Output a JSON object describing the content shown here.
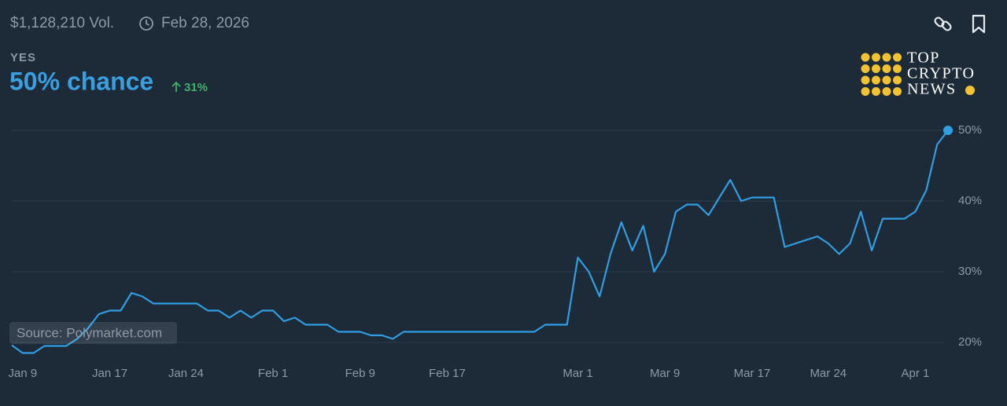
{
  "header": {
    "volume": "$1,128,210 Vol.",
    "end_date": "Feb 28, 2026",
    "outcome": "YES",
    "chance": "50% chance",
    "change": "31%"
  },
  "source": "Source: Polymarket.com",
  "logo": {
    "line1": "TOP",
    "line2": "CRYPTO",
    "line3": "NEWS"
  },
  "chart_data": {
    "type": "line",
    "categories": [
      null,
      "Jan 9",
      null,
      null,
      null,
      null,
      null,
      null,
      null,
      "Jan 17",
      null,
      null,
      null,
      null,
      null,
      null,
      "Jan 24",
      null,
      null,
      null,
      null,
      null,
      null,
      null,
      "Feb 1",
      null,
      null,
      null,
      null,
      null,
      null,
      null,
      "Feb 9",
      null,
      null,
      null,
      null,
      null,
      null,
      null,
      "Feb 17",
      null,
      null,
      null,
      null,
      null,
      null,
      null,
      null,
      null,
      null,
      null,
      "Mar 1",
      null,
      null,
      null,
      null,
      null,
      null,
      null,
      "Mar 9",
      null,
      null,
      null,
      null,
      null,
      null,
      null,
      "Mar 17",
      null,
      null,
      null,
      null,
      null,
      null,
      "Mar 24",
      null,
      null,
      null,
      null,
      null,
      null,
      null,
      "Apr 1",
      null,
      null,
      null
    ],
    "series": [
      {
        "name": "YES",
        "color": "#2f9ee3",
        "values": [
          19.6,
          18.5,
          18.5,
          19.5,
          19.5,
          19.5,
          20.5,
          22,
          24,
          24.5,
          24.5,
          27,
          26.5,
          25.5,
          25.5,
          25.5,
          25.5,
          25.5,
          24.5,
          24.5,
          23.5,
          24.5,
          23.5,
          24.5,
          24.5,
          23,
          23.5,
          22.5,
          22.5,
          22.5,
          21.5,
          21.5,
          21.5,
          21,
          21,
          20.5,
          21.5,
          21.5,
          21.5,
          21.5,
          21.5,
          21.5,
          21.5,
          21.5,
          21.5,
          21.5,
          21.5,
          21.5,
          21.5,
          22.5,
          22.5,
          22.5,
          32,
          30,
          26.5,
          32.5,
          37,
          33,
          36.5,
          30,
          32.5,
          38.5,
          39.5,
          39.5,
          38,
          40.5,
          43,
          40,
          40.5,
          40.5,
          40.5,
          33.5,
          34,
          34.5,
          35,
          34,
          32.5,
          34,
          38.5,
          33,
          37.5,
          37.5,
          37.5,
          38.5,
          41.5,
          48,
          50
        ]
      }
    ],
    "ylim": [
      18,
      51
    ],
    "yticks": [
      {
        "value": 20,
        "label": "20%"
      },
      {
        "value": 30,
        "label": "30%"
      },
      {
        "value": 40,
        "label": "40%"
      },
      {
        "value": 50,
        "label": "50%"
      }
    ],
    "grid": true
  }
}
